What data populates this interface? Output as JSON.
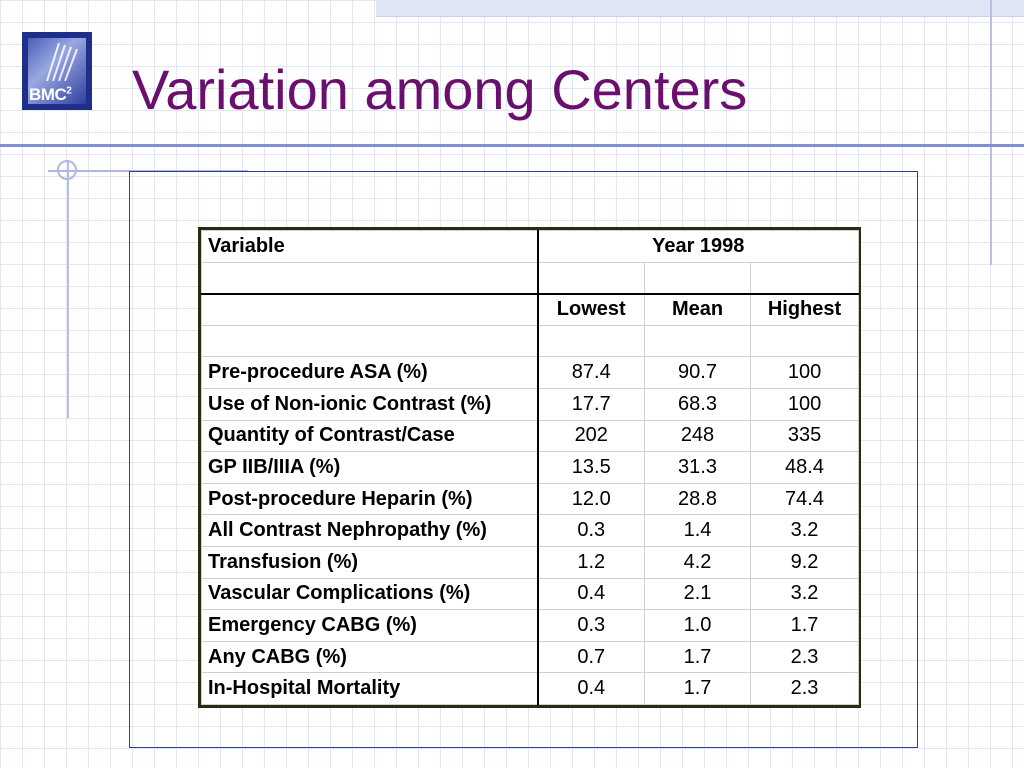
{
  "slide": {
    "title": "Variation among Centers",
    "logo": {
      "text": "BMC",
      "superscript": "2"
    }
  },
  "table": {
    "header": {
      "variable": "Variable",
      "year": "Year 1998"
    },
    "columns": [
      "Lowest",
      "Mean",
      "Highest"
    ],
    "rows": [
      {
        "label": "Pre-procedure ASA (%)",
        "lowest": "87.4",
        "mean": "90.7",
        "highest": "100"
      },
      {
        "label": "Use of Non-ionic Contrast (%)",
        "lowest": "17.7",
        "mean": "68.3",
        "highest": "100"
      },
      {
        "label": "Quantity of Contrast/Case",
        "lowest": "202",
        "mean": "248",
        "highest": "335"
      },
      {
        "label": "GP IIB/IIIA (%)",
        "lowest": "13.5",
        "mean": "31.3",
        "highest": "48.4"
      },
      {
        "label": "Post-procedure Heparin (%)",
        "lowest": "12.0",
        "mean": "28.8",
        "highest": "74.4"
      },
      {
        "label": "All Contrast Nephropathy (%)",
        "lowest": "0.3",
        "mean": "1.4",
        "highest": "3.2"
      },
      {
        "label": "Transfusion (%)",
        "lowest": "1.2",
        "mean": "4.2",
        "highest": "9.2"
      },
      {
        "label": "Vascular Complications (%)",
        "lowest": "0.4",
        "mean": "2.1",
        "highest": "3.2"
      },
      {
        "label": "Emergency CABG (%)",
        "lowest": "0.3",
        "mean": "1.0",
        "highest": "1.7"
      },
      {
        "label": "Any CABG (%)",
        "lowest": "0.7",
        "mean": "1.7",
        "highest": "2.3"
      },
      {
        "label": "In-Hospital Mortality",
        "lowest": "0.4",
        "mean": "1.7",
        "highest": "2.3"
      }
    ]
  },
  "colors": {
    "title": "#6b0f6f",
    "accent_line": "#7f8fd3",
    "logo_bg": "#1e2f8a"
  }
}
